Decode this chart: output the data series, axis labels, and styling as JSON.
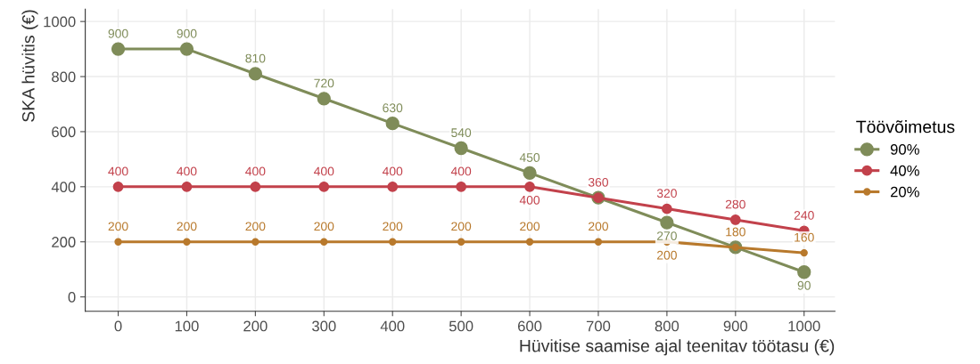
{
  "chart_data": {
    "type": "line",
    "xlabel": "Hüvitise saamise ajal teenitav töötasu (€)",
    "ylabel": "SKA hüvitis (€)",
    "legend_title": "Töövõimetus",
    "x": [
      0,
      100,
      200,
      300,
      400,
      500,
      600,
      700,
      800,
      900,
      1000
    ],
    "series": [
      {
        "name": "90%",
        "color": "#7f8c59",
        "values": [
          900,
          900,
          810,
          720,
          630,
          540,
          450,
          360,
          270,
          180,
          90
        ],
        "value_labels": [
          "900",
          "900",
          "810",
          "720",
          "630",
          "540",
          "450",
          null,
          "270",
          null,
          "90"
        ]
      },
      {
        "name": "40%",
        "color": "#c2414b",
        "values": [
          400,
          400,
          400,
          400,
          400,
          400,
          400,
          360,
          320,
          280,
          240
        ]
      },
      {
        "name": "20%",
        "color": "#b8792c",
        "values": [
          200,
          200,
          200,
          200,
          200,
          200,
          200,
          200,
          200,
          180,
          160
        ]
      }
    ],
    "xlim": [
      -48,
      1045
    ],
    "ylim": [
      -52,
      1045
    ],
    "xticks": [
      0,
      100,
      200,
      300,
      400,
      500,
      600,
      700,
      800,
      900,
      1000
    ],
    "yticks": [
      0,
      200,
      400,
      600,
      800,
      1000
    ],
    "data_labels": true,
    "grid": true,
    "legend": "right",
    "marker": "circle",
    "line_style": "solid"
  }
}
